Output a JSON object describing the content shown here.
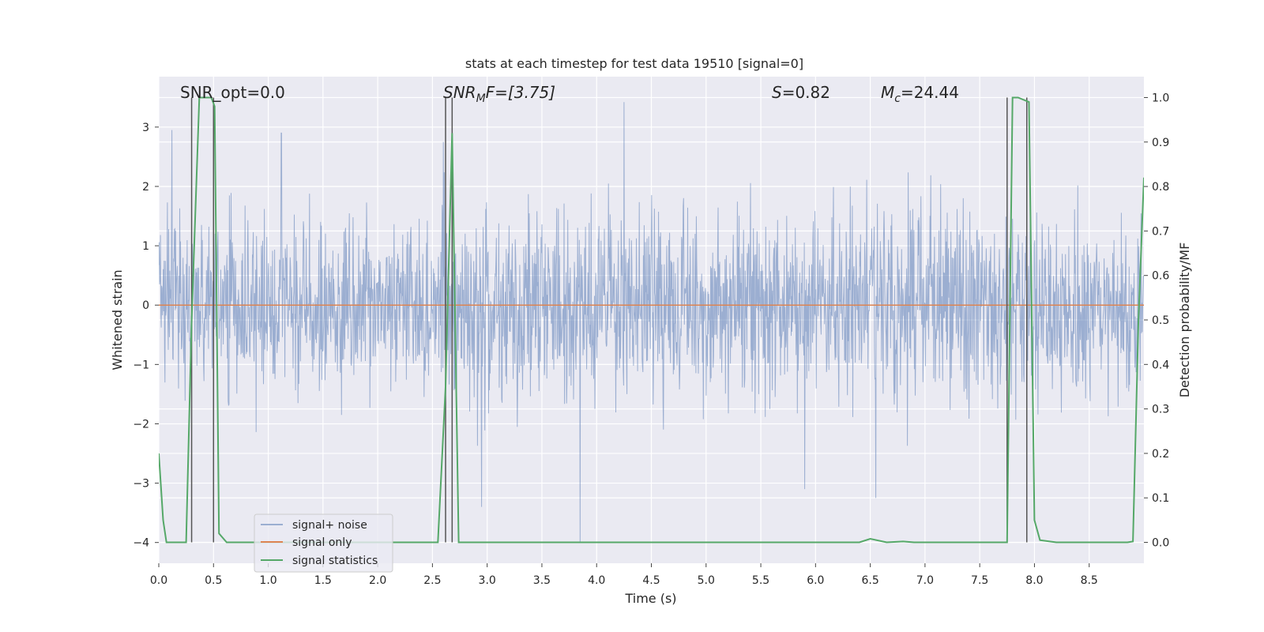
{
  "chart_data": {
    "type": "line",
    "title": "stats at each timestep for test data 19510 [signal=0]",
    "xlabel": "Time (s)",
    "ylabel_left": "Whitened strain",
    "ylabel_right": "Detection probability/MF",
    "xlim": [
      0.0,
      9.0
    ],
    "ylim_left": [
      -4.35,
      3.85
    ],
    "ylim_right": [
      -0.047,
      1.047
    ],
    "x_ticks": [
      "0.0",
      "0.5",
      "1.0",
      "1.5",
      "2.0",
      "2.5",
      "3.0",
      "3.5",
      "4.0",
      "4.5",
      "5.0",
      "5.5",
      "6.0",
      "6.5",
      "7.0",
      "7.5",
      "8.0",
      "8.5"
    ],
    "y_ticks_left": [
      "3",
      "2",
      "1",
      "0",
      "−1",
      "−2",
      "−3",
      "−4"
    ],
    "y_ticks_right": [
      "1.0",
      "0.9",
      "0.8",
      "0.7",
      "0.6",
      "0.5",
      "0.4",
      "0.3",
      "0.2",
      "0.1",
      "0.0"
    ],
    "grid": true,
    "annotations": {
      "snr_opt": "SNR_opt=0.0",
      "snr_mf_base": "SNR",
      "snr_mf_sub": "M",
      "snr_mf_rest": "F=[3.75]",
      "s_base": "S",
      "s_rest": "=0.82",
      "mc_base": "M",
      "mc_sub": "c",
      "mc_rest": "=24.44"
    },
    "series": [
      {
        "name": "signal+ noise",
        "color": "#4c72b0",
        "description_values": "whitened strain noise, approx gaussian, range -4 to 3.4",
        "notable_spikes": [
          [
            0.12,
            2.95
          ],
          [
            1.12,
            2.9
          ],
          [
            2.6,
            2.75
          ],
          [
            2.95,
            -3.4
          ],
          [
            3.85,
            -4.0
          ],
          [
            4.25,
            3.42
          ],
          [
            5.9,
            -3.1
          ],
          [
            6.55,
            -3.25
          ]
        ]
      },
      {
        "name": "signal only",
        "color": "#dd8452",
        "x": [
          0.0,
          9.0
        ],
        "y": [
          0.0,
          0.0
        ]
      },
      {
        "name": "signal statistics",
        "color": "#55a868",
        "x": [
          0.0,
          0.04,
          0.07,
          0.15,
          0.25,
          0.3,
          0.37,
          0.42,
          0.48,
          0.51,
          0.55,
          0.62,
          0.8,
          1.0,
          1.5,
          2.0,
          2.3,
          2.55,
          2.62,
          2.68,
          2.74,
          3.0,
          4.0,
          5.0,
          6.0,
          6.4,
          6.5,
          6.65,
          6.8,
          6.9,
          7.0,
          7.5,
          7.75,
          7.8,
          7.85,
          7.95,
          8.0,
          8.05,
          8.2,
          8.5,
          8.85,
          8.9,
          8.95,
          9.0
        ],
        "y": [
          0.2,
          0.05,
          0.0,
          0.0,
          0.0,
          0.5,
          1.0,
          1.0,
          1.0,
          0.98,
          0.02,
          0.0,
          0.0,
          0.0,
          0.0,
          0.0,
          0.0,
          0.0,
          0.35,
          0.92,
          0.0,
          0.0,
          0.0,
          0.0,
          0.0,
          0.0,
          0.008,
          0.0,
          0.002,
          0.0,
          0.0,
          0.0,
          0.0,
          1.0,
          1.0,
          0.99,
          0.05,
          0.005,
          0.0,
          0.0,
          0.0,
          0.002,
          0.5,
          0.82
        ]
      }
    ],
    "vertical_markers": [
      0.3,
      0.5,
      2.62,
      2.68,
      7.75,
      7.93
    ],
    "legend": {
      "placement": "lower-left",
      "entries": [
        {
          "label": "signal+ noise",
          "color": "#4c72b0"
        },
        {
          "label": "signal only",
          "color": "#dd8452"
        },
        {
          "label": "signal statistics",
          "color": "#55a868"
        }
      ]
    }
  }
}
